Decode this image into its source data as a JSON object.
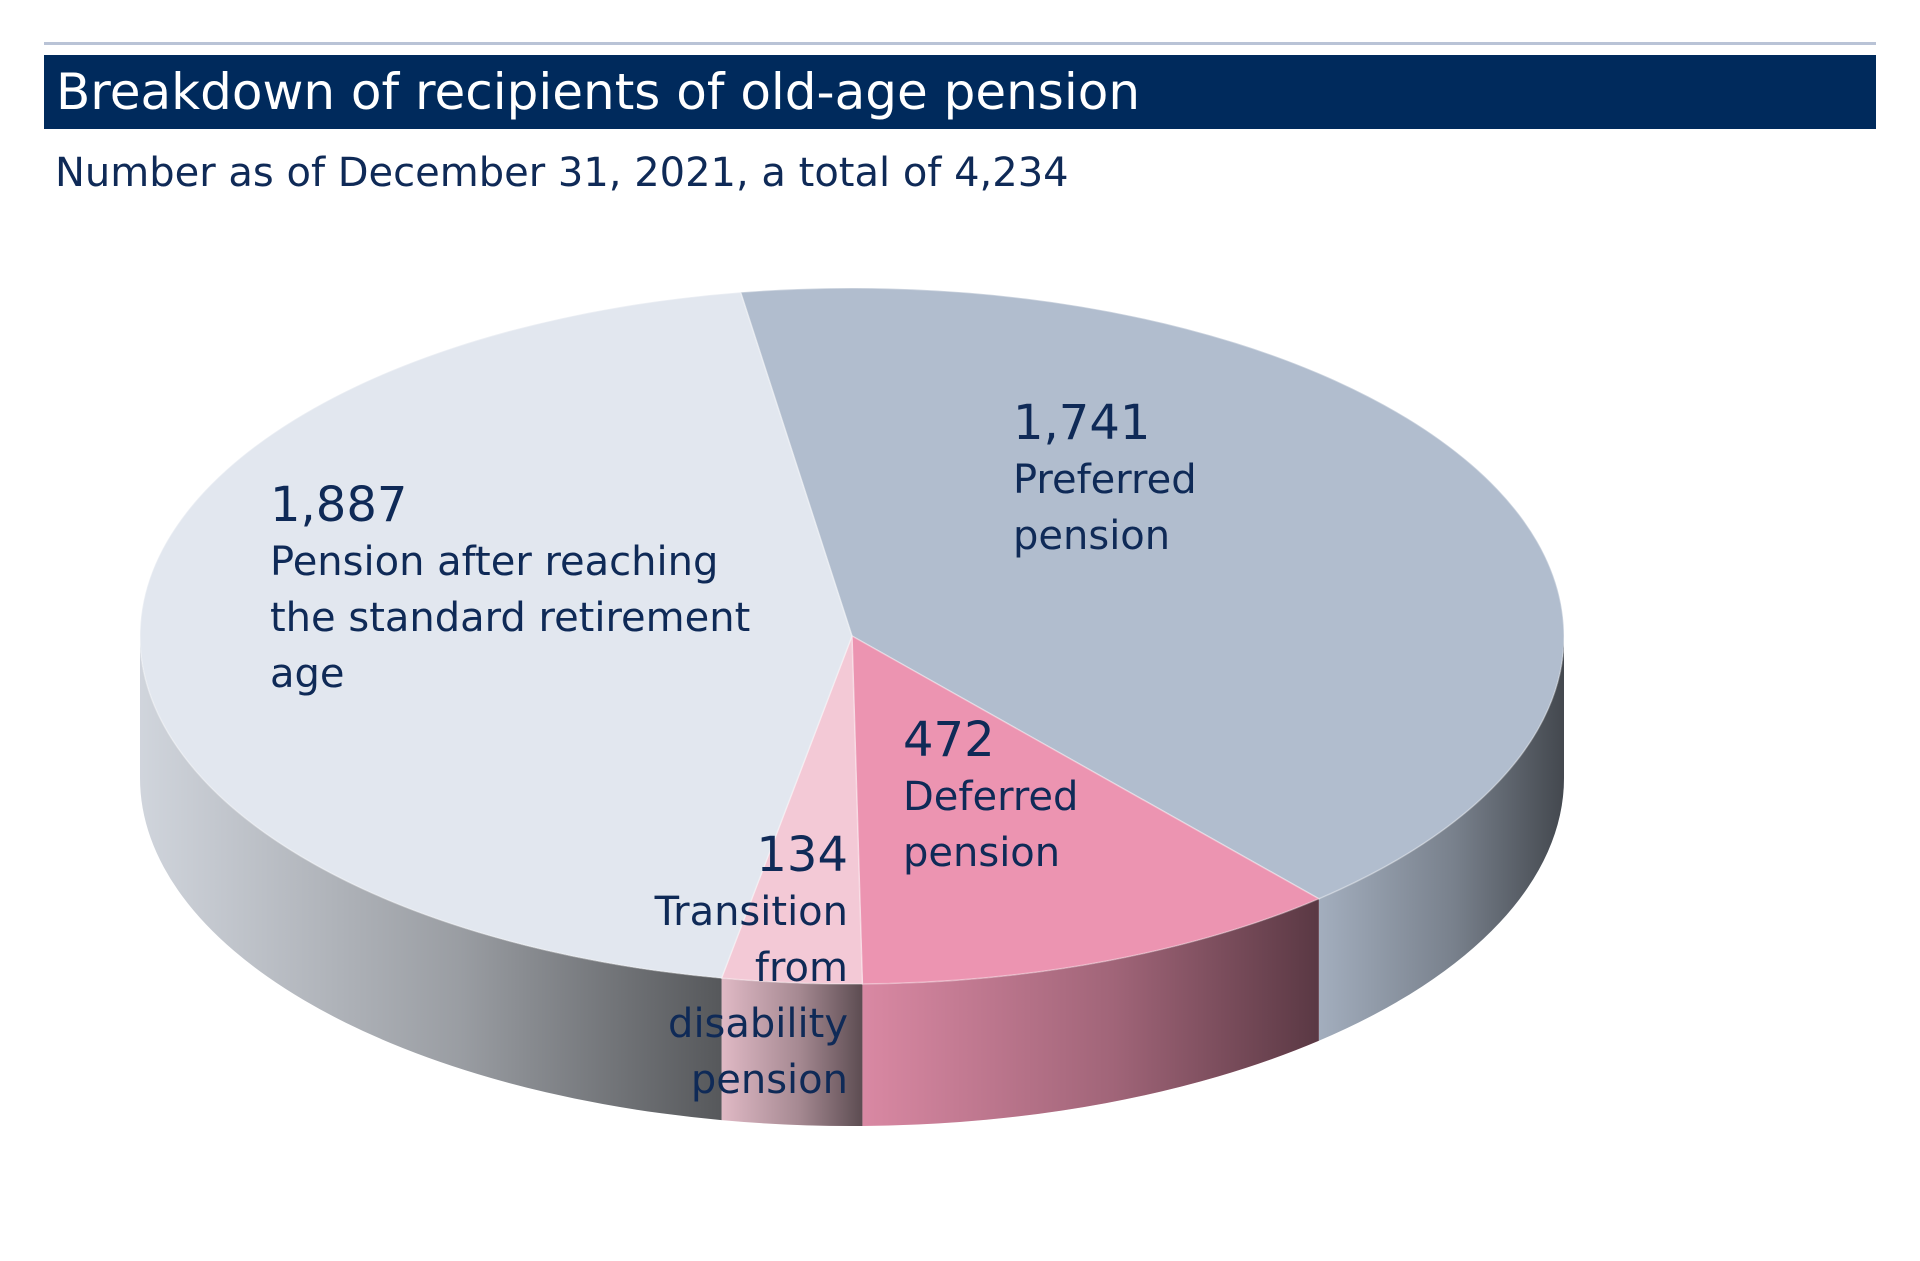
{
  "header": {
    "title": "Breakdown of recipients of old-age pension",
    "subtitle": "Number as of December 31, 2021, a total of 4,234"
  },
  "chart_data": {
    "type": "pie",
    "style": "3d",
    "title": "Breakdown of recipients of old-age pension",
    "subtitle": "Number as of December 31, 2021, a total of 4,234",
    "total": 4234,
    "slices": [
      {
        "label": "Preferred pension",
        "value": 1741,
        "value_text": "1,741",
        "color": "#b1bdce"
      },
      {
        "label": "Deferred pension",
        "value": 472,
        "value_text": "472",
        "color": "#ec94b1"
      },
      {
        "label": "Transition from disability pension",
        "value": 134,
        "value_text": "134",
        "color": "#f3c9d6"
      },
      {
        "label": "Pension after reaching the standard retirement age",
        "value": 1887,
        "value_text": "1,887",
        "color": "#e2e7ef"
      }
    ]
  },
  "labels": {
    "standard": {
      "num": "1,887",
      "text": "Pension after reaching the standard retirement age"
    },
    "preferred": {
      "num": "1,741",
      "text": "Preferred pension"
    },
    "deferred": {
      "num": "472",
      "text": "Deferred pension"
    },
    "transition": {
      "num": "134",
      "text": "Transition from disability pension"
    }
  }
}
